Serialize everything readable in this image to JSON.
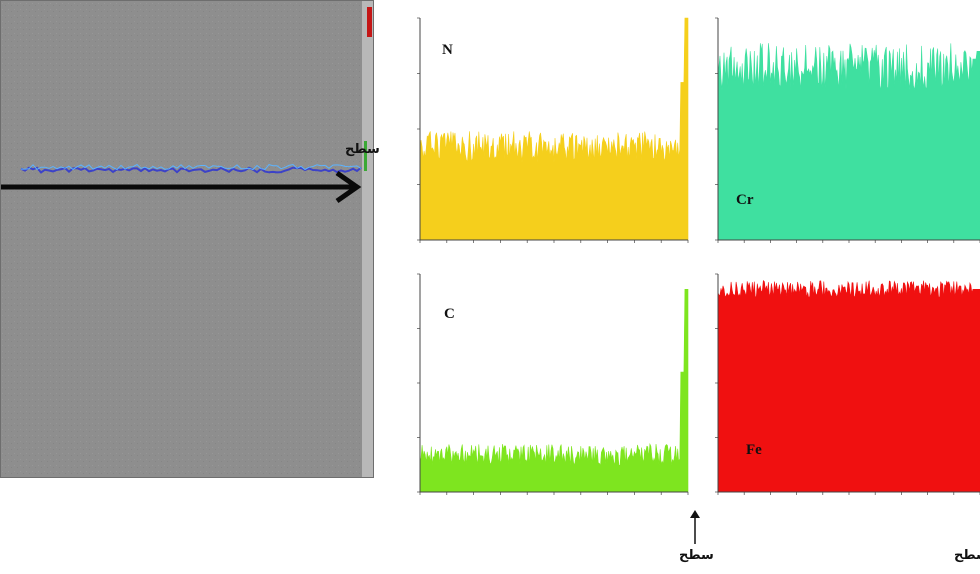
{
  "surface_label": "سطح",
  "sem": {
    "left_axis_top": "",
    "left_axis_bottom": ""
  },
  "chart_data": [
    {
      "type": "area",
      "element": "N",
      "color": "#f5cf1c",
      "ylim": [
        0,
        1
      ],
      "level": 0.42,
      "noise": 0.07,
      "surface_spike": 1.0,
      "xlabel": "",
      "xtick_count": 10
    },
    {
      "type": "area",
      "element": "Cr",
      "color": "#3fe0a0",
      "ylim": [
        0,
        1
      ],
      "level": 0.78,
      "noise": 0.11,
      "surface_spike": 0.85,
      "xlabel": "",
      "xtick_count": 10
    },
    {
      "type": "area",
      "element": "C",
      "color": "#7ee51f",
      "ylim": [
        0,
        1
      ],
      "level": 0.17,
      "noise": 0.05,
      "surface_spike": 0.93,
      "xlabel": "",
      "xtick_count": 10
    },
    {
      "type": "area",
      "element": "Fe",
      "color": "#f01010",
      "ylim": [
        0,
        1
      ],
      "level": 0.93,
      "noise": 0.04,
      "surface_spike": 0.93,
      "xlabel": "",
      "xtick_count": 10
    }
  ]
}
